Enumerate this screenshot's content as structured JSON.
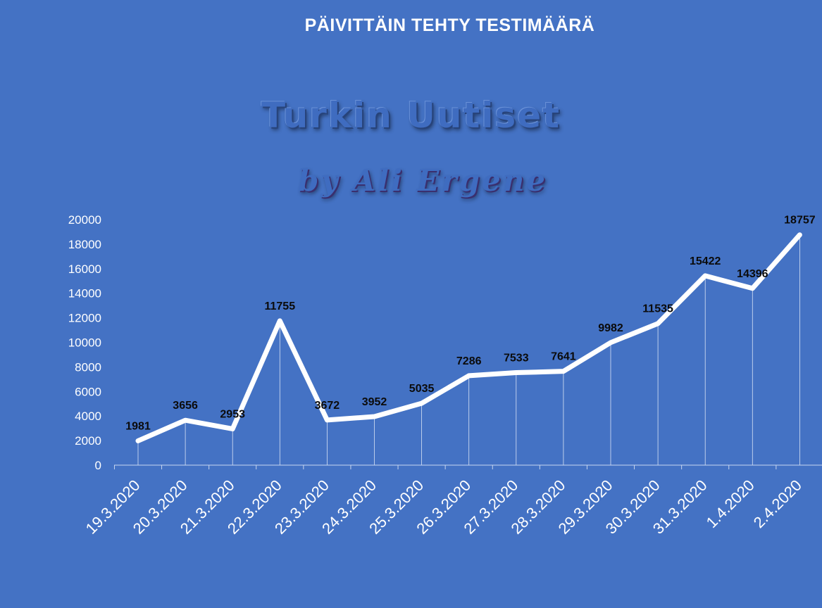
{
  "chart_data": {
    "type": "line",
    "title": "PÄIVITTÄIN TEHTY TESTIMÄÄRÄ",
    "watermark": {
      "title": "Turkin Uutiset",
      "byline": "by Ali Ergene"
    },
    "categories": [
      "19.3.2020",
      "20.3.2020",
      "21.3.2020",
      "22.3.2020",
      "23.3.2020",
      "24.3.2020",
      "25.3.2020",
      "26.3.2020",
      "27.3.2020",
      "28.3.2020",
      "29.3.2020",
      "30.3.2020",
      "31.3.2020",
      "1.4.2020",
      "2.4.2020"
    ],
    "series": [
      {
        "values": [
          1981,
          3656,
          2953,
          11755,
          3672,
          3952,
          5035,
          7286,
          7533,
          7641,
          9982,
          11535,
          15422,
          14396,
          18757
        ]
      }
    ],
    "ylim": [
      0,
      20000
    ],
    "yticks": [
      0,
      2000,
      4000,
      6000,
      8000,
      10000,
      12000,
      14000,
      16000,
      18000,
      20000
    ],
    "xlabel": "",
    "ylabel": "",
    "grid": false,
    "drop_lines": true,
    "data_labels": true,
    "colors": {
      "background": "#4472c4",
      "line": "#ffffff",
      "label": "#0b0b0b"
    }
  }
}
